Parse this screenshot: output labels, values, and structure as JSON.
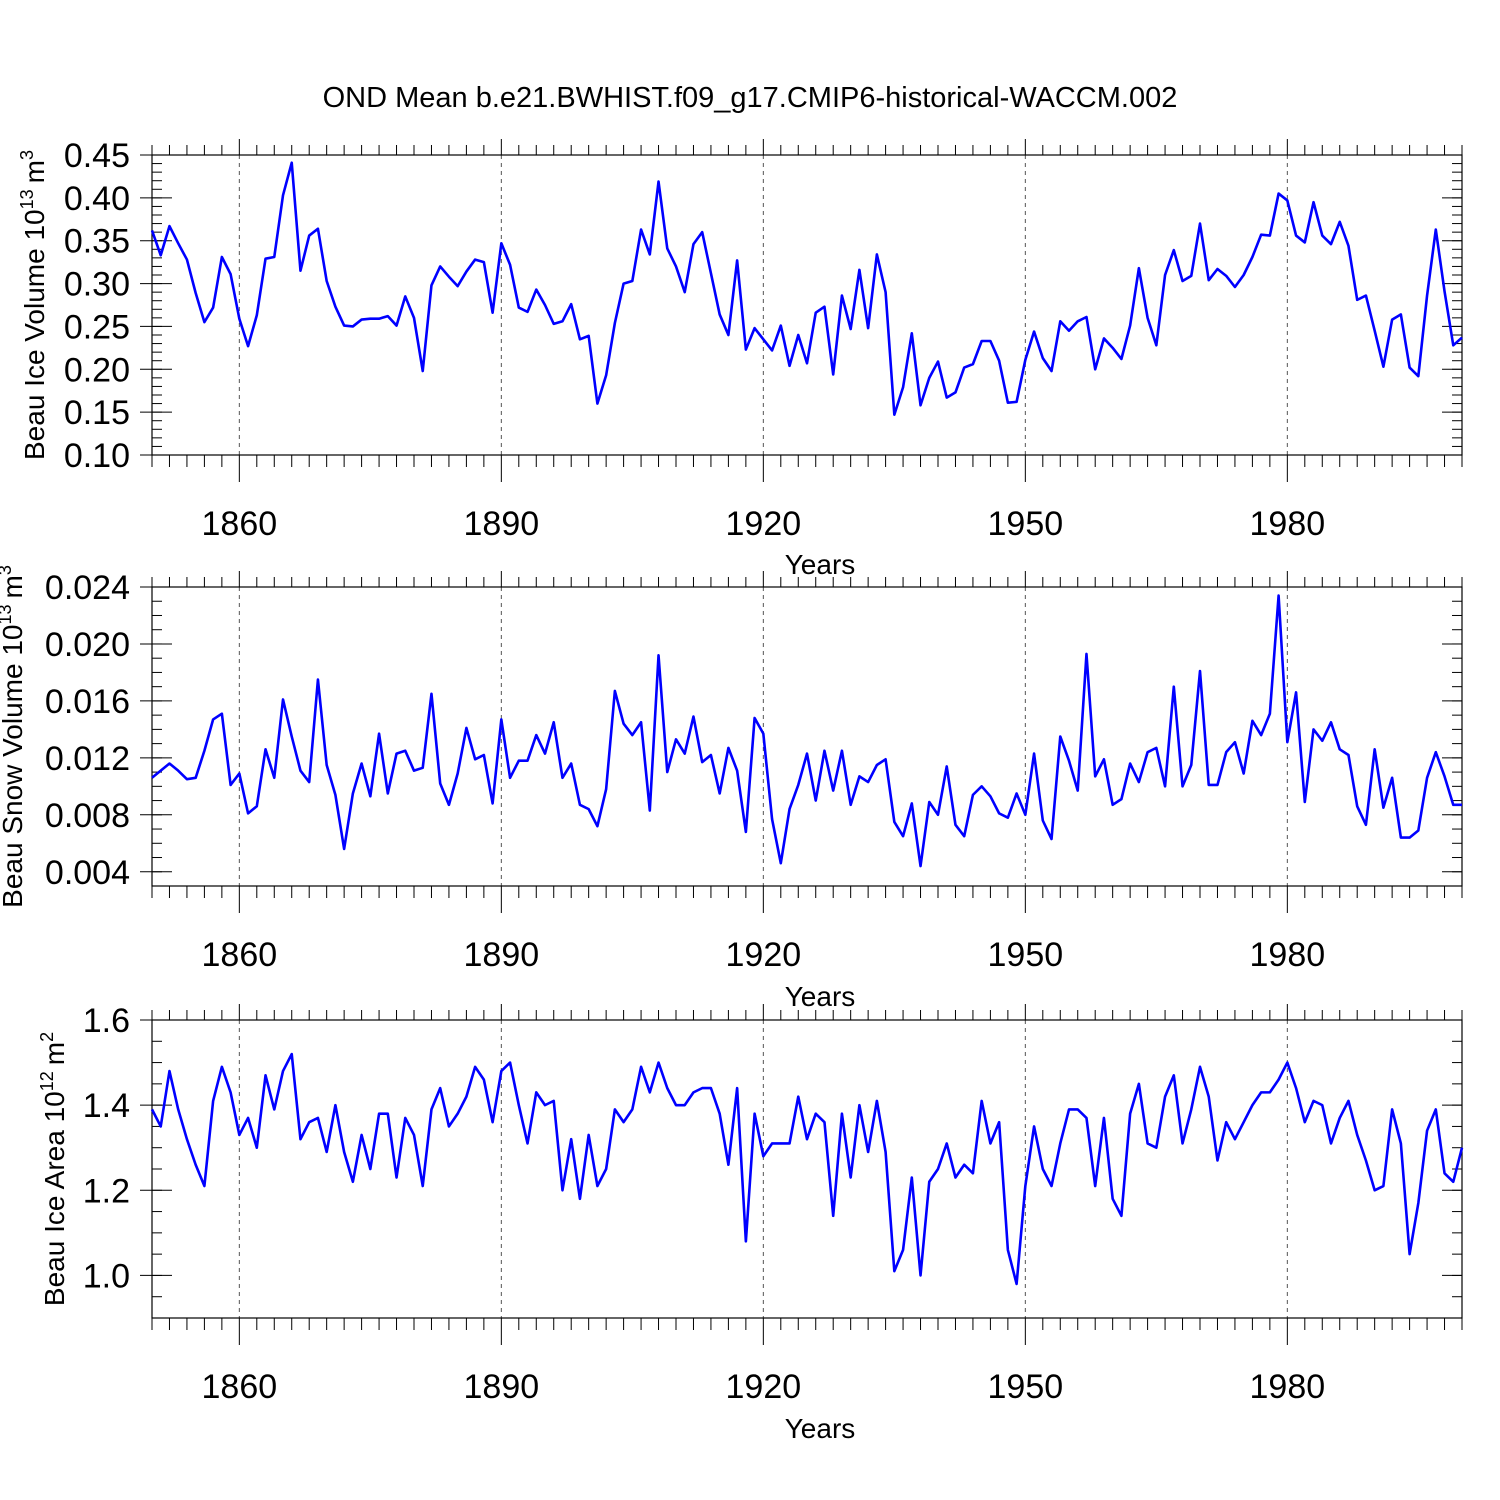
{
  "title": "OND Mean b.e21.BWHIST.f09_g17.CMIP6-historical-WACCM.002",
  "chart_data": [
    {
      "type": "line",
      "name": "ice-volume",
      "ylabel": "Beau Ice Volume 10",
      "ylabel_exp": "13",
      "ylabel_unit": "m",
      "ylabel_unit_exp": "3",
      "xlabel": "Years",
      "xlim": [
        1850,
        2000
      ],
      "ylim": [
        0.1,
        0.45
      ],
      "yticks": [
        0.1,
        0.15,
        0.2,
        0.25,
        0.3,
        0.35,
        0.4,
        0.45
      ],
      "ytick_labels": [
        "0.10",
        "0.15",
        "0.20",
        "0.25",
        "0.30",
        "0.35",
        "0.40",
        "0.45"
      ],
      "yminor_step": 0.01,
      "xticks": [
        1860,
        1890,
        1920,
        1950,
        1980
      ],
      "xtick_labels": [
        "1860",
        "1890",
        "1920",
        "1950",
        "1980"
      ],
      "grid_x": [
        1860,
        1890,
        1920,
        1950,
        1980
      ],
      "series_color": "#0000ff",
      "x_start": 1850,
      "values": [
        0.362,
        0.333,
        0.367,
        0.347,
        0.328,
        0.289,
        0.255,
        0.272,
        0.331,
        0.311,
        0.259,
        0.227,
        0.263,
        0.329,
        0.331,
        0.403,
        0.441,
        0.315,
        0.356,
        0.364,
        0.303,
        0.273,
        0.251,
        0.25,
        0.258,
        0.259,
        0.259,
        0.262,
        0.251,
        0.285,
        0.26,
        0.198,
        0.298,
        0.32,
        0.308,
        0.297,
        0.314,
        0.328,
        0.325,
        0.266,
        0.347,
        0.322,
        0.272,
        0.267,
        0.293,
        0.275,
        0.253,
        0.256,
        0.276,
        0.235,
        0.239,
        0.16,
        0.193,
        0.254,
        0.3,
        0.303,
        0.363,
        0.334,
        0.419,
        0.341,
        0.32,
        0.29,
        0.346,
        0.36,
        0.312,
        0.264,
        0.24,
        0.327,
        0.223,
        0.248,
        0.235,
        0.222,
        0.251,
        0.204,
        0.24,
        0.207,
        0.266,
        0.273,
        0.194,
        0.286,
        0.247,
        0.316,
        0.248,
        0.334,
        0.29,
        0.147,
        0.179,
        0.242,
        0.158,
        0.19,
        0.209,
        0.167,
        0.173,
        0.202,
        0.206,
        0.233,
        0.233,
        0.21,
        0.161,
        0.162,
        0.211,
        0.244,
        0.213,
        0.198,
        0.256,
        0.245,
        0.256,
        0.261,
        0.2,
        0.236,
        0.225,
        0.212,
        0.251,
        0.318,
        0.26,
        0.228,
        0.31,
        0.339,
        0.303,
        0.309,
        0.37,
        0.304,
        0.317,
        0.309,
        0.296,
        0.31,
        0.331,
        0.357,
        0.356,
        0.405,
        0.397,
        0.356,
        0.348,
        0.395,
        0.356,
        0.346,
        0.372,
        0.344,
        0.281,
        0.286,
        0.245,
        0.203,
        0.258,
        0.264,
        0.202,
        0.192,
        0.286,
        0.363,
        0.291,
        0.228,
        0.237
      ]
    },
    {
      "type": "line",
      "name": "snow-volume",
      "ylabel": "Beau Snow Volume 10",
      "ylabel_exp": "13",
      "ylabel_unit": "m",
      "ylabel_unit_exp": "3",
      "xlabel": "Years",
      "xlim": [
        1850,
        2000
      ],
      "ylim": [
        0.003,
        0.024
      ],
      "yticks": [
        0.004,
        0.008,
        0.012,
        0.016,
        0.02,
        0.024
      ],
      "ytick_labels": [
        "0.004",
        "0.008",
        "0.012",
        "0.016",
        "0.020",
        "0.024"
      ],
      "yminor_step": 0.001,
      "xticks": [
        1860,
        1890,
        1920,
        1950,
        1980
      ],
      "xtick_labels": [
        "1860",
        "1890",
        "1920",
        "1950",
        "1980"
      ],
      "grid_x": [
        1860,
        1890,
        1920,
        1950,
        1980
      ],
      "series_color": "#0000ff",
      "x_start": 1850,
      "values": [
        0.0106,
        0.0111,
        0.0116,
        0.0111,
        0.0105,
        0.0106,
        0.0125,
        0.0147,
        0.0151,
        0.0101,
        0.0109,
        0.0081,
        0.0086,
        0.0126,
        0.0106,
        0.0161,
        0.0135,
        0.0111,
        0.0103,
        0.0175,
        0.0115,
        0.0094,
        0.0056,
        0.0095,
        0.0116,
        0.0093,
        0.0137,
        0.0095,
        0.0123,
        0.0125,
        0.0111,
        0.0113,
        0.0165,
        0.0102,
        0.0087,
        0.0109,
        0.0141,
        0.0119,
        0.0122,
        0.0088,
        0.0147,
        0.0106,
        0.0118,
        0.0118,
        0.0136,
        0.0123,
        0.0145,
        0.0106,
        0.0116,
        0.0087,
        0.0084,
        0.0072,
        0.0098,
        0.0167,
        0.0144,
        0.0136,
        0.0145,
        0.0083,
        0.0192,
        0.011,
        0.0133,
        0.0123,
        0.0149,
        0.0117,
        0.0122,
        0.0095,
        0.0127,
        0.0111,
        0.0068,
        0.0148,
        0.0137,
        0.0077,
        0.0046,
        0.0084,
        0.0101,
        0.0123,
        0.009,
        0.0125,
        0.0097,
        0.0125,
        0.0087,
        0.0107,
        0.0103,
        0.0115,
        0.0119,
        0.0075,
        0.0065,
        0.0088,
        0.0044,
        0.0089,
        0.008,
        0.0114,
        0.0073,
        0.0065,
        0.0094,
        0.01,
        0.0093,
        0.0081,
        0.0078,
        0.0095,
        0.008,
        0.0123,
        0.0076,
        0.0063,
        0.0135,
        0.0118,
        0.0097,
        0.0193,
        0.0107,
        0.0119,
        0.0087,
        0.0091,
        0.0116,
        0.0103,
        0.0124,
        0.0127,
        0.01,
        0.017,
        0.01,
        0.0115,
        0.0181,
        0.0101,
        0.0101,
        0.0124,
        0.0131,
        0.0109,
        0.0146,
        0.0136,
        0.0151,
        0.0234,
        0.0131,
        0.0166,
        0.0089,
        0.014,
        0.0132,
        0.0145,
        0.0126,
        0.0122,
        0.0086,
        0.0073,
        0.0126,
        0.0085,
        0.0106,
        0.0064,
        0.0064,
        0.0069,
        0.0106,
        0.0124,
        0.0107,
        0.0087,
        0.0087
      ]
    },
    {
      "type": "line",
      "name": "ice-area",
      "ylabel": "Beau Ice Area 10",
      "ylabel_exp": "12",
      "ylabel_unit": "m",
      "ylabel_unit_exp": "2",
      "xlabel": "Years",
      "xlim": [
        1850,
        2000
      ],
      "ylim": [
        0.9,
        1.6
      ],
      "yticks": [
        1.0,
        1.2,
        1.4,
        1.6
      ],
      "ytick_labels": [
        "1.0",
        "1.2",
        "1.4",
        "1.6"
      ],
      "yminor_step": 0.05,
      "xticks": [
        1860,
        1890,
        1920,
        1950,
        1980
      ],
      "xtick_labels": [
        "1860",
        "1890",
        "1920",
        "1950",
        "1980"
      ],
      "grid_x": [
        1860,
        1890,
        1920,
        1950,
        1980
      ],
      "series_color": "#0000ff",
      "x_start": 1850,
      "values": [
        1.39,
        1.35,
        1.48,
        1.39,
        1.32,
        1.26,
        1.21,
        1.41,
        1.49,
        1.43,
        1.33,
        1.37,
        1.3,
        1.47,
        1.39,
        1.48,
        1.52,
        1.32,
        1.36,
        1.37,
        1.29,
        1.4,
        1.29,
        1.22,
        1.33,
        1.25,
        1.38,
        1.38,
        1.23,
        1.37,
        1.33,
        1.21,
        1.39,
        1.44,
        1.35,
        1.38,
        1.42,
        1.49,
        1.46,
        1.36,
        1.48,
        1.5,
        1.4,
        1.31,
        1.43,
        1.4,
        1.41,
        1.2,
        1.32,
        1.18,
        1.33,
        1.21,
        1.25,
        1.39,
        1.36,
        1.39,
        1.49,
        1.43,
        1.5,
        1.44,
        1.4,
        1.4,
        1.43,
        1.44,
        1.44,
        1.38,
        1.26,
        1.44,
        1.08,
        1.38,
        1.28,
        1.31,
        1.31,
        1.31,
        1.42,
        1.32,
        1.38,
        1.36,
        1.14,
        1.38,
        1.23,
        1.4,
        1.29,
        1.41,
        1.29,
        1.01,
        1.06,
        1.23,
        1.0,
        1.22,
        1.25,
        1.31,
        1.23,
        1.26,
        1.24,
        1.41,
        1.31,
        1.36,
        1.06,
        0.98,
        1.21,
        1.35,
        1.25,
        1.21,
        1.31,
        1.39,
        1.39,
        1.37,
        1.21,
        1.37,
        1.18,
        1.14,
        1.38,
        1.45,
        1.31,
        1.3,
        1.42,
        1.47,
        1.31,
        1.39,
        1.49,
        1.42,
        1.27,
        1.36,
        1.32,
        1.36,
        1.4,
        1.43,
        1.43,
        1.46,
        1.5,
        1.44,
        1.36,
        1.41,
        1.4,
        1.31,
        1.37,
        1.41,
        1.33,
        1.27,
        1.2,
        1.21,
        1.39,
        1.31,
        1.05,
        1.17,
        1.34,
        1.39,
        1.24,
        1.22,
        1.3
      ]
    }
  ]
}
